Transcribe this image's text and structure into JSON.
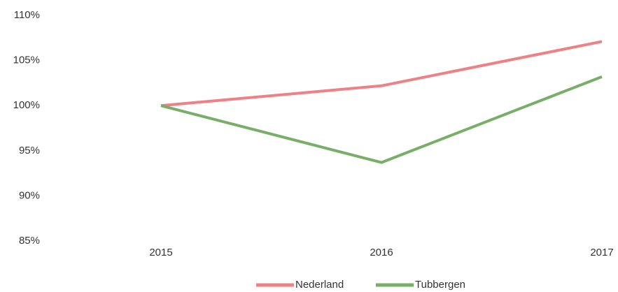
{
  "chart_data": {
    "type": "line",
    "categories": [
      "2015",
      "2016",
      "2017"
    ],
    "series": [
      {
        "name": "Nederland",
        "color": "#ef8085",
        "values": [
          100,
          102.2,
          107.1
        ]
      },
      {
        "name": "Tubbergen",
        "color": "#79ae68",
        "values": [
          100,
          93.7,
          103.2
        ]
      }
    ],
    "ylim": [
      85,
      110
    ],
    "yticks": [
      {
        "value": 85,
        "label": "85%"
      },
      {
        "value": 90,
        "label": "90%"
      },
      {
        "value": 95,
        "label": "95%"
      },
      {
        "value": 100,
        "label": "100%"
      },
      {
        "value": 105,
        "label": "105%"
      },
      {
        "value": 110,
        "label": "110%"
      }
    ],
    "grid": false,
    "legend": "bottom"
  }
}
